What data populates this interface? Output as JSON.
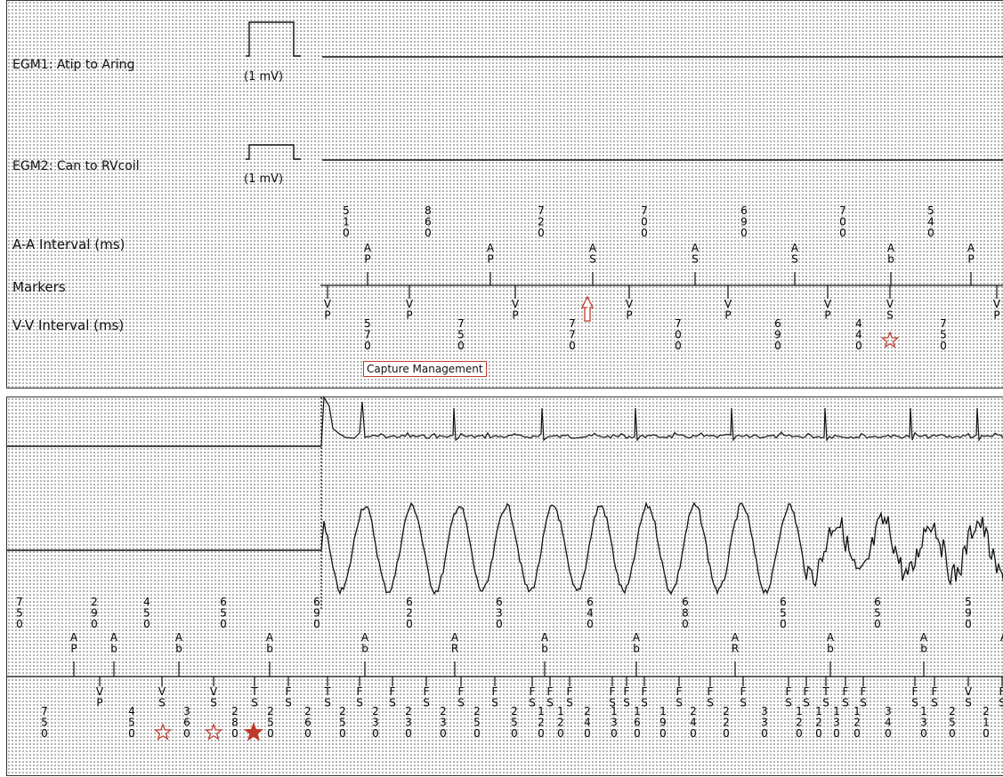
{
  "top": {
    "channels": [
      {
        "label": "EGM1: Atip to Aring",
        "cal": "(1 mV)"
      },
      {
        "label": "EGM2: Can to RVcoil",
        "cal": "(1 mV)"
      }
    ],
    "row_labels": {
      "aa": "A-A Interval (ms)",
      "markers": "Markers",
      "vv": "V-V Interval (ms)"
    },
    "aa_intervals": [
      "510",
      "860",
      "720",
      "700",
      "690",
      "700",
      "540"
    ],
    "atrial_markers": [
      "AP",
      "AP",
      "AS",
      "AS",
      "AS",
      "Ab",
      "AP"
    ],
    "ventricular_markers": [
      "VP",
      "VP",
      "VP",
      "VP",
      "VP",
      "VP",
      "VS",
      "VP"
    ],
    "vv_intervals": [
      "570",
      "750",
      "770",
      "700",
      "690",
      "440",
      "750"
    ],
    "annotation": "Capture Management",
    "colors": {
      "accent": "#c0392b"
    }
  },
  "bottom": {
    "aa_intervals": [
      "750",
      "290",
      "450",
      "650",
      "690",
      "620",
      "630",
      "640",
      "680",
      "650",
      "650",
      "590"
    ],
    "atrial_markers": [
      "AP",
      "Ab",
      "Ab",
      "Ab",
      "Ab",
      "AR",
      "Ab",
      "Ab",
      "AR",
      "Ab",
      "Ab",
      "A"
    ],
    "ventricular_markers": [
      "VP",
      "VS",
      "VS",
      "TS",
      "FS",
      "TS",
      "FS",
      "FS",
      "FS",
      "FS",
      "FS",
      "FS",
      "FS",
      "FS",
      "FS",
      "FS",
      "FS",
      "FS",
      "FS",
      "FS",
      "FS",
      "FS",
      "TS",
      "FS",
      "FS",
      "FS",
      "FS",
      "VS",
      "FS",
      "FS",
      "FS"
    ],
    "vv_intervals": [
      "750",
      "450",
      "360",
      "280",
      "250",
      "260",
      "250",
      "230",
      "230",
      "230",
      "250",
      "250",
      "120",
      "120",
      "240",
      "130",
      "160",
      "190",
      "240",
      "220",
      "330",
      "120",
      "120",
      "130",
      "120",
      "340",
      "130",
      "250",
      "210"
    ]
  }
}
